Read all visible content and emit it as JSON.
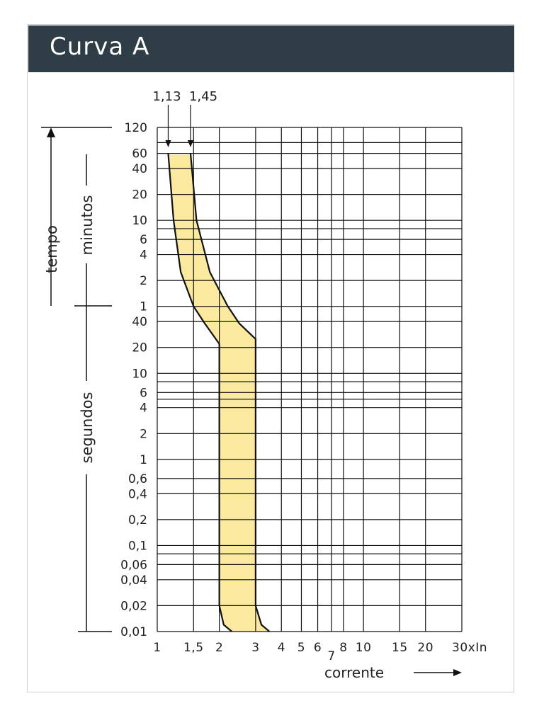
{
  "header": {
    "title": "Curva A"
  },
  "colors": {
    "header_bg": "#2f3e46",
    "band_fill": "#fce9a0",
    "grid": "#111111"
  },
  "chart_data": {
    "type": "area",
    "title": "Curva A",
    "xlabel": "corrente",
    "x_unit": "xIn",
    "y_axis_labels": {
      "tempo": "tempo",
      "minutos": "minutos",
      "segundos": "segundos"
    },
    "x_scale": "log",
    "y_scale": "log",
    "xlim": [
      1,
      30
    ],
    "ylim_seconds": [
      0.01,
      7200
    ],
    "grid": true,
    "x_ticks": [
      {
        "value": 1,
        "label": "1"
      },
      {
        "value": 1.5,
        "label": "1,5"
      },
      {
        "value": 2,
        "label": "2"
      },
      {
        "value": 3,
        "label": "3"
      },
      {
        "value": 4,
        "label": "4"
      },
      {
        "value": 5,
        "label": "5"
      },
      {
        "value": 6,
        "label": "6"
      },
      {
        "value": 7,
        "label": "7"
      },
      {
        "value": 8,
        "label": "8"
      },
      {
        "value": 10,
        "label": "10"
      },
      {
        "value": 15,
        "label": "15"
      },
      {
        "value": 20,
        "label": "20"
      },
      {
        "value": 30,
        "label": "30xIn"
      }
    ],
    "x_grid_values": [
      1,
      1.5,
      2,
      3,
      4,
      5,
      6,
      7,
      8,
      10,
      15,
      20,
      30
    ],
    "y_ticks": [
      {
        "seconds": 7200,
        "label": "120"
      },
      {
        "seconds": 3600,
        "label": "60"
      },
      {
        "seconds": 2400,
        "label": "40"
      },
      {
        "seconds": 1200,
        "label": "20"
      },
      {
        "seconds": 600,
        "label": "10"
      },
      {
        "seconds": 360,
        "label": "6"
      },
      {
        "seconds": 240,
        "label": "4"
      },
      {
        "seconds": 120,
        "label": "2"
      },
      {
        "seconds": 60,
        "label": "1"
      },
      {
        "seconds": 40,
        "label": "40"
      },
      {
        "seconds": 20,
        "label": "20"
      },
      {
        "seconds": 10,
        "label": "10"
      },
      {
        "seconds": 6,
        "label": "6"
      },
      {
        "seconds": 4,
        "label": "4"
      },
      {
        "seconds": 2,
        "label": "2"
      },
      {
        "seconds": 1,
        "label": "1"
      },
      {
        "seconds": 0.6,
        "label": "0,6"
      },
      {
        "seconds": 0.4,
        "label": "0,4"
      },
      {
        "seconds": 0.2,
        "label": "0,2"
      },
      {
        "seconds": 0.1,
        "label": "0,1"
      },
      {
        "seconds": 0.06,
        "label": "0,06"
      },
      {
        "seconds": 0.04,
        "label": "0,04"
      },
      {
        "seconds": 0.02,
        "label": "0,02"
      },
      {
        "seconds": 0.01,
        "label": "0,01"
      }
    ],
    "y_grid_seconds": [
      7200,
      4800,
      3600,
      2400,
      1200,
      600,
      480,
      360,
      240,
      120,
      60,
      40,
      20,
      10,
      8,
      6,
      5,
      4,
      2,
      1,
      0.6,
      0.4,
      0.2,
      0.1,
      0.08,
      0.06,
      0.04,
      0.02,
      0.01
    ],
    "annotations": [
      {
        "text": "1,13",
        "x": 1.13,
        "y_seconds": 3600
      },
      {
        "text": "1,45",
        "x": 1.45,
        "y_seconds": 3600
      }
    ],
    "series": [
      {
        "role": "lower boundary",
        "points": [
          {
            "x": 1.13,
            "y": 3600
          },
          {
            "x": 1.2,
            "y": 600
          },
          {
            "x": 1.3,
            "y": 150
          },
          {
            "x": 1.5,
            "y": 60
          },
          {
            "x": 1.7,
            "y": 38
          },
          {
            "x": 2.0,
            "y": 22
          },
          {
            "x": 2.0,
            "y": 0.02
          },
          {
            "x": 2.1,
            "y": 0.012
          },
          {
            "x": 2.3,
            "y": 0.01
          }
        ]
      },
      {
        "role": "upper boundary",
        "points": [
          {
            "x": 1.45,
            "y": 3600
          },
          {
            "x": 1.55,
            "y": 600
          },
          {
            "x": 1.8,
            "y": 150
          },
          {
            "x": 2.2,
            "y": 60
          },
          {
            "x": 2.5,
            "y": 38
          },
          {
            "x": 3.0,
            "y": 25
          },
          {
            "x": 3.0,
            "y": 0.02
          },
          {
            "x": 3.2,
            "y": 0.012
          },
          {
            "x": 3.5,
            "y": 0.01
          }
        ]
      }
    ]
  }
}
